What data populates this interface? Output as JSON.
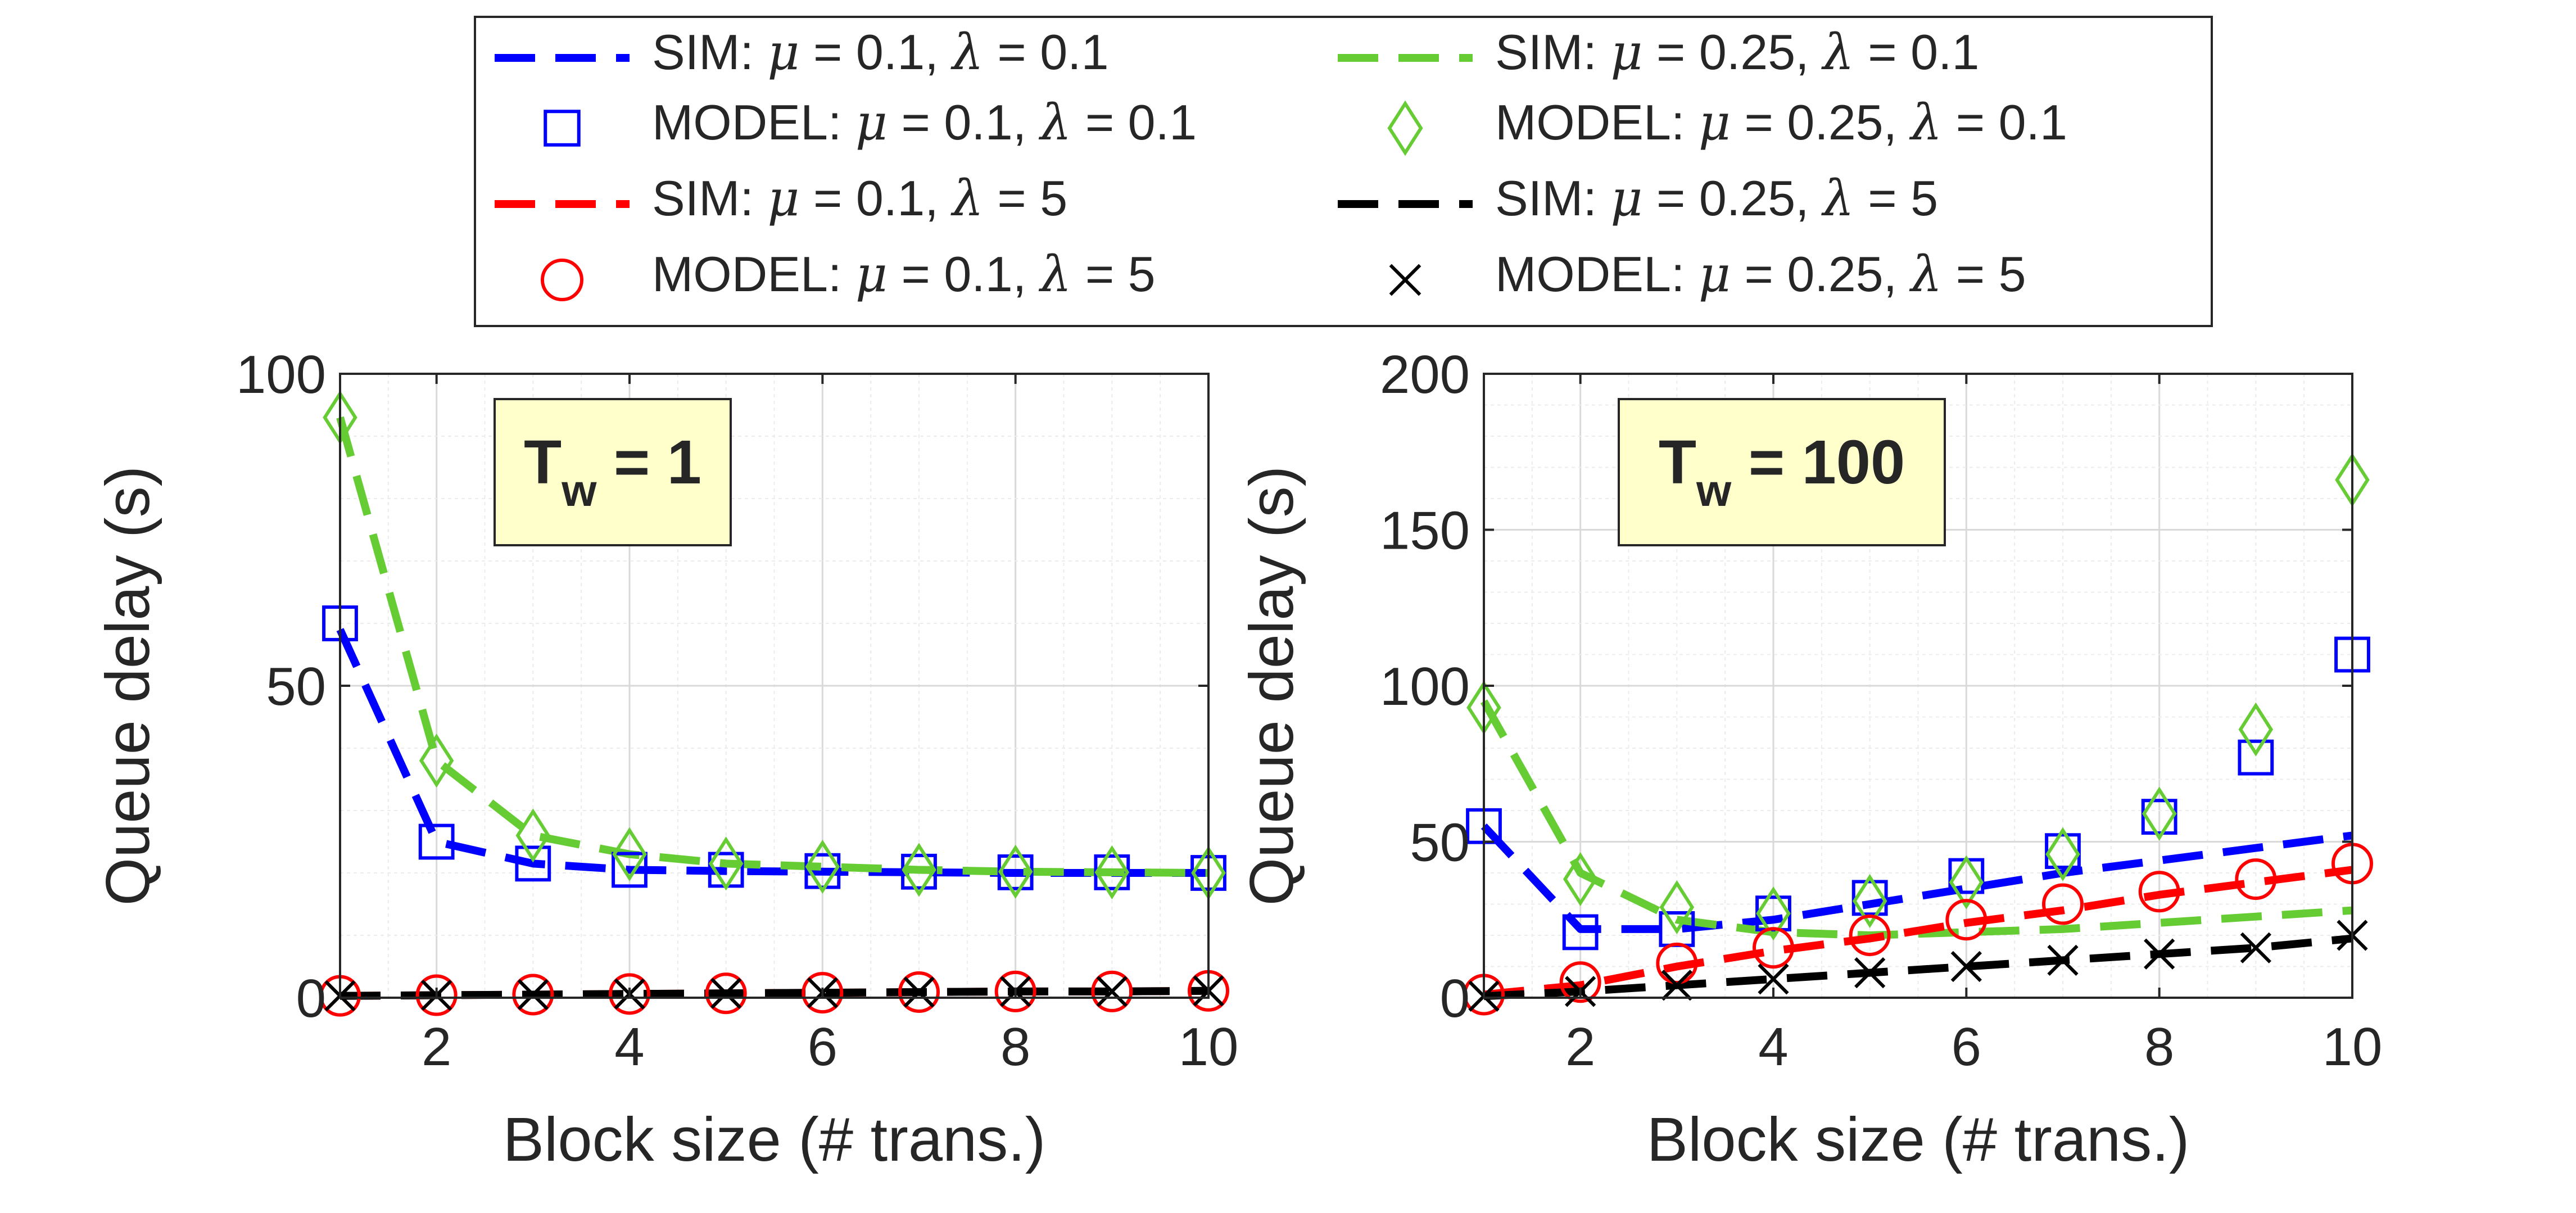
{
  "legend": {
    "placement": "top-center",
    "entries": [
      {
        "key": "sim_mu01_l01",
        "kind": "line",
        "label_pre": "SIM: ",
        "label_mu": "0.1",
        "label_lambda": "0.1",
        "color": "#0000ff"
      },
      {
        "key": "sim_mu025_l01",
        "kind": "line",
        "label_pre": "SIM: ",
        "label_mu": "0.25",
        "label_lambda": "0.1",
        "color": "#66cc33"
      },
      {
        "key": "mod_mu01_l01",
        "kind": "square",
        "label_pre": "MODEL: ",
        "label_mu": "0.1",
        "label_lambda": "0.1",
        "color": "#0000ff"
      },
      {
        "key": "mod_mu025_l01",
        "kind": "diamond",
        "label_pre": "MODEL: ",
        "label_mu": "0.25",
        "label_lambda": "0.1",
        "color": "#66cc33"
      },
      {
        "key": "sim_mu01_l5",
        "kind": "line",
        "label_pre": "SIM: ",
        "label_mu": "0.1",
        "label_lambda": "5",
        "color": "#ff0000"
      },
      {
        "key": "sim_mu025_l5",
        "kind": "line",
        "label_pre": "SIM: ",
        "label_mu": "0.25",
        "label_lambda": "5",
        "color": "#000000"
      },
      {
        "key": "mod_mu01_l5",
        "kind": "circle",
        "label_pre": "MODEL: ",
        "label_mu": "0.1",
        "label_lambda": "5",
        "color": "#ff0000"
      },
      {
        "key": "mod_mu025_l5",
        "kind": "x",
        "label_pre": "MODEL: ",
        "label_mu": "0.25",
        "label_lambda": "5",
        "color": "#000000"
      }
    ]
  },
  "chart_data": [
    {
      "type": "line",
      "annotation": {
        "main": "T",
        "sub": "w",
        "rest": " = 1",
        "background": "#ffffcc"
      },
      "xlabel": "Block size (# trans.)",
      "ylabel": "Queue delay (s)",
      "xlim": [
        1,
        10
      ],
      "ylim": [
        0,
        100
      ],
      "xticks": [
        2,
        4,
        6,
        8,
        10
      ],
      "yticks": [
        0,
        50,
        100
      ],
      "grid": true,
      "x": [
        1,
        2,
        3,
        4,
        5,
        6,
        7,
        8,
        9,
        10
      ],
      "series": [
        {
          "key": "sim_mu01_l01",
          "kind": "line",
          "color": "#0000ff",
          "values": [
            59,
            25,
            21.5,
            20.5,
            20.3,
            20.2,
            20.1,
            20,
            20,
            20
          ]
        },
        {
          "key": "sim_mu025_l01",
          "kind": "line",
          "color": "#66cc33",
          "values": [
            93,
            38,
            26,
            23,
            21.5,
            21,
            20.5,
            20.2,
            20.1,
            20
          ]
        },
        {
          "key": "sim_mu01_l5",
          "kind": "line",
          "color": "#ff0000",
          "values": [
            0.3,
            0.4,
            0.5,
            0.6,
            0.7,
            0.8,
            0.9,
            1.0,
            1.0,
            1.1
          ]
        },
        {
          "key": "sim_mu025_l5",
          "kind": "line",
          "color": "#000000",
          "values": [
            0.3,
            0.4,
            0.5,
            0.6,
            0.7,
            0.8,
            0.9,
            1.0,
            1.0,
            1.1
          ]
        },
        {
          "key": "mod_mu01_l01",
          "kind": "square",
          "color": "#0000ff",
          "values": [
            60,
            25,
            21.5,
            20.5,
            20.5,
            20.3,
            20.2,
            20.1,
            20.1,
            20
          ]
        },
        {
          "key": "mod_mu025_l01",
          "kind": "diamond",
          "color": "#66cc33",
          "values": [
            93,
            38,
            26,
            23,
            21.5,
            21,
            20.5,
            20.2,
            20.1,
            20
          ]
        },
        {
          "key": "mod_mu01_l5",
          "kind": "circle",
          "color": "#ff0000",
          "values": [
            0.3,
            0.4,
            0.5,
            0.6,
            0.7,
            0.8,
            0.9,
            1.0,
            1.0,
            1.1
          ]
        },
        {
          "key": "mod_mu025_l5",
          "kind": "x",
          "color": "#000000",
          "values": [
            0.3,
            0.4,
            0.5,
            0.6,
            0.7,
            0.8,
            0.9,
            1.0,
            1.0,
            1.1
          ]
        }
      ]
    },
    {
      "type": "line",
      "annotation": {
        "main": "T",
        "sub": "w",
        "rest": " = 100",
        "background": "#ffffcc"
      },
      "xlabel": "Block size (# trans.)",
      "ylabel": "Queue delay (s)",
      "xlim": [
        1,
        10
      ],
      "ylim": [
        0,
        200
      ],
      "xticks": [
        2,
        4,
        6,
        8,
        10
      ],
      "yticks": [
        0,
        50,
        100,
        150,
        200
      ],
      "grid": true,
      "x": [
        1,
        2,
        3,
        4,
        5,
        6,
        7,
        8,
        9,
        10
      ],
      "series": [
        {
          "key": "sim_mu01_l01",
          "kind": "line",
          "color": "#0000ff",
          "values": [
            55,
            22,
            22,
            25,
            30,
            35,
            40,
            44,
            48,
            52
          ]
        },
        {
          "key": "sim_mu025_l01",
          "kind": "line",
          "color": "#66cc33",
          "values": [
            95,
            40,
            25,
            21,
            20,
            21,
            22,
            24,
            26,
            28
          ]
        },
        {
          "key": "sim_mu01_l5",
          "kind": "line",
          "color": "#ff0000",
          "values": [
            1,
            4,
            10,
            15,
            19,
            24,
            28,
            33,
            37,
            41
          ]
        },
        {
          "key": "sim_mu025_l5",
          "kind": "line",
          "color": "#000000",
          "values": [
            0.5,
            2,
            4,
            6,
            8,
            10,
            12,
            14,
            16,
            19
          ]
        },
        {
          "key": "mod_mu01_l01",
          "kind": "square",
          "color": "#0000ff",
          "values": [
            55,
            21,
            22,
            27,
            32,
            39,
            47,
            58,
            77,
            110
          ]
        },
        {
          "key": "mod_mu025_l01",
          "kind": "diamond",
          "color": "#66cc33",
          "values": [
            93,
            38,
            29,
            27,
            31,
            37,
            46,
            59,
            86,
            166
          ]
        },
        {
          "key": "mod_mu01_l5",
          "kind": "circle",
          "color": "#ff0000",
          "values": [
            1,
            5,
            11,
            16,
            20,
            25,
            30,
            34,
            38,
            43
          ]
        },
        {
          "key": "mod_mu025_l5",
          "kind": "x",
          "color": "#000000",
          "values": [
            0.5,
            2,
            4,
            6,
            8,
            10,
            12,
            14,
            16,
            20
          ]
        }
      ]
    }
  ]
}
